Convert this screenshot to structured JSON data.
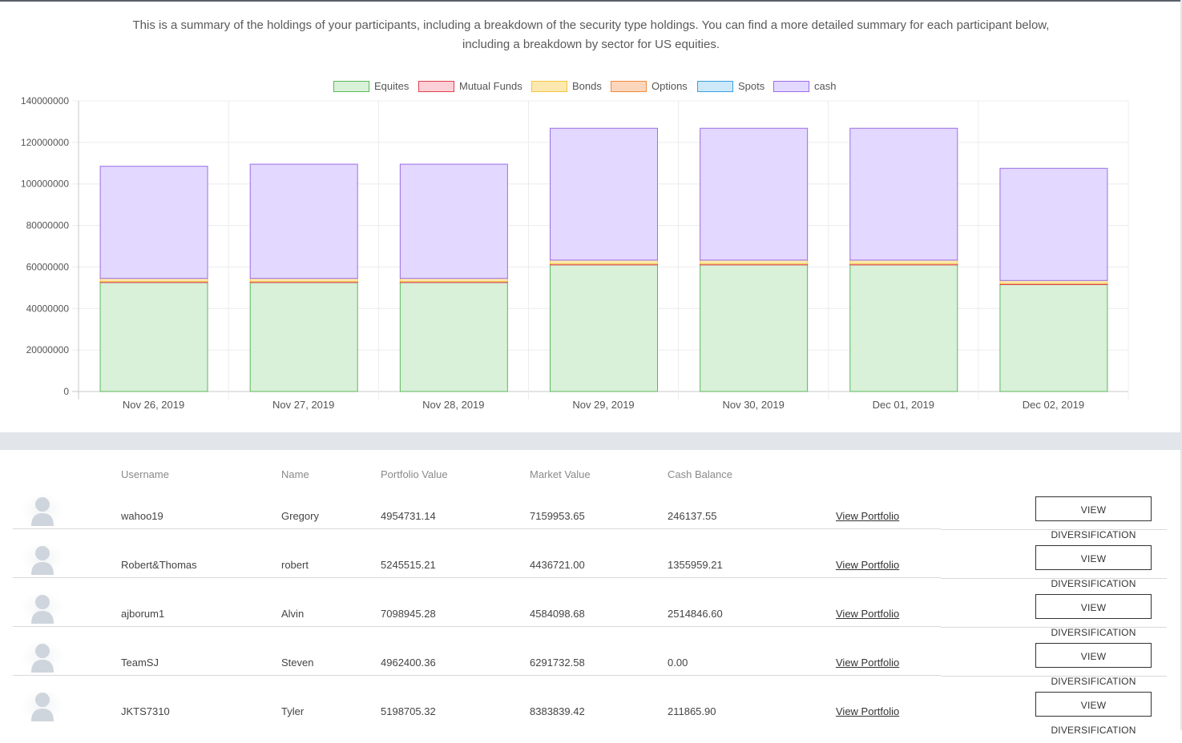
{
  "intro": {
    "line1": "This is a summary of the holdings of your participants, including a breakdown of the security type holdings. You can find a more detailed summary for each participant below,",
    "line2": "including a breakdown by sector for US equities."
  },
  "chart_data": {
    "type": "bar",
    "stacked": true,
    "categories": [
      "Nov 26, 2019",
      "Nov 27, 2019",
      "Nov 28, 2019",
      "Nov 29, 2019",
      "Nov 30, 2019",
      "Dec 01, 2019",
      "Dec 02, 2019"
    ],
    "ylim": [
      0,
      140000000
    ],
    "yticks": [
      "0",
      "20000000",
      "40000000",
      "60000000",
      "80000000",
      "100000000",
      "120000000",
      "140000000"
    ],
    "ytick_values": [
      0,
      20000000,
      40000000,
      60000000,
      80000000,
      100000000,
      120000000,
      140000000
    ],
    "legend_position": "top",
    "grid": true,
    "series": [
      {
        "name": "Equites",
        "fill": "#d9f0d9",
        "stroke": "#5cb85c",
        "values": [
          52500000,
          52500000,
          52500000,
          61000000,
          61000000,
          61000000,
          51500000
        ]
      },
      {
        "name": "Mutual Funds",
        "fill": "#fbd0d6",
        "stroke": "#e0404e",
        "values": [
          500000,
          500000,
          500000,
          500000,
          500000,
          500000,
          500000
        ]
      },
      {
        "name": "Bonds",
        "fill": "#fde9b0",
        "stroke": "#f4c542",
        "values": [
          1500000,
          1500000,
          1500000,
          1800000,
          1800000,
          1800000,
          1500000
        ]
      },
      {
        "name": "Options",
        "fill": "#fbd6bc",
        "stroke": "#f08a3c",
        "values": [
          0,
          0,
          0,
          0,
          0,
          0,
          0
        ]
      },
      {
        "name": "Spots",
        "fill": "#cde8f8",
        "stroke": "#3aa0e0",
        "values": [
          0,
          0,
          0,
          0,
          0,
          0,
          0
        ]
      },
      {
        "name": "cash",
        "fill": "#e3d8ff",
        "stroke": "#9b6ee8",
        "values": [
          54000000,
          55000000,
          55000000,
          63500000,
          63500000,
          63500000,
          54000000
        ]
      }
    ]
  },
  "table": {
    "headers": {
      "username": "Username",
      "name": "Name",
      "portfolio_value": "Portfolio Value",
      "market_value": "Market Value",
      "cash_balance": "Cash Balance"
    },
    "rows": [
      {
        "username": "wahoo19",
        "name": "Gregory",
        "portfolio_value": "4954731.14",
        "market_value": "7159953.65",
        "cash_balance": "246137.55",
        "link": "View Portfolio",
        "button": "VIEW DIVERSIFICATION"
      },
      {
        "username": "Robert&Thomas",
        "name": "robert",
        "portfolio_value": "5245515.21",
        "market_value": "4436721.00",
        "cash_balance": "1355959.21",
        "link": "View Portfolio",
        "button": "VIEW DIVERSIFICATION"
      },
      {
        "username": "ajborum1",
        "name": "Alvin",
        "portfolio_value": "7098945.28",
        "market_value": "4584098.68",
        "cash_balance": "2514846.60",
        "link": "View Portfolio",
        "button": "VIEW DIVERSIFICATION"
      },
      {
        "username": "TeamSJ",
        "name": "Steven",
        "portfolio_value": "4962400.36",
        "market_value": "6291732.58",
        "cash_balance": "0.00",
        "link": "View Portfolio",
        "button": "VIEW DIVERSIFICATION"
      },
      {
        "username": "JKTS7310",
        "name": "Tyler",
        "portfolio_value": "5198705.32",
        "market_value": "8383839.42",
        "cash_balance": "211865.90",
        "link": "View Portfolio",
        "button": "VIEW DIVERSIFICATION"
      }
    ]
  }
}
